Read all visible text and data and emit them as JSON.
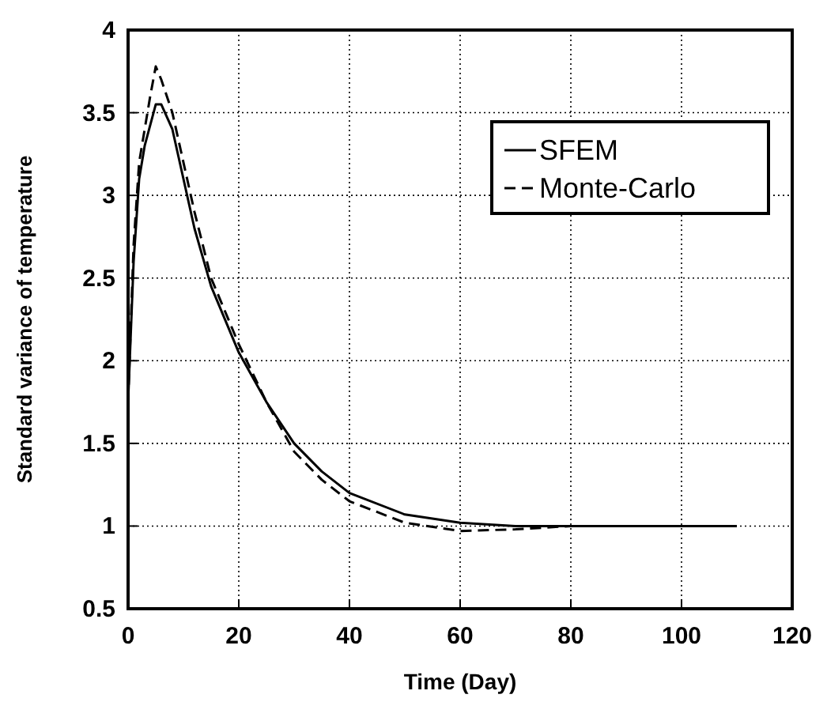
{
  "chart_data": {
    "type": "line",
    "xlabel": "Time (Day)",
    "ylabel": "Standard variance of temperature",
    "xlim": [
      0,
      120
    ],
    "xticks": [
      0,
      20,
      40,
      60,
      80,
      100,
      120
    ],
    "ylim": [
      0.5,
      4
    ],
    "yticks": [
      0.5,
      1,
      1.5,
      2,
      2.5,
      3,
      3.5,
      4
    ],
    "grid": true,
    "legend": "top right",
    "series": [
      {
        "name": "SFEM",
        "color": "#000000",
        "line_style": "solid",
        "x": [
          0,
          1,
          2,
          3,
          5,
          6,
          8,
          10,
          12,
          15,
          20,
          25,
          30,
          35,
          40,
          50,
          60,
          70,
          80,
          110
        ],
        "values": [
          1.75,
          2.6,
          3.1,
          3.3,
          3.55,
          3.55,
          3.4,
          3.1,
          2.8,
          2.45,
          2.05,
          1.75,
          1.5,
          1.33,
          1.2,
          1.07,
          1.02,
          1.0,
          1.0,
          1.0
        ]
      },
      {
        "name": "Monte-Carlo",
        "color": "#000000",
        "line_style": "dashed",
        "x": [
          0,
          1,
          2,
          4,
          5,
          6,
          8,
          10,
          12,
          15,
          20,
          25,
          30,
          35,
          40,
          50,
          60,
          70,
          80,
          110
        ],
        "values": [
          1.75,
          2.7,
          3.2,
          3.6,
          3.78,
          3.7,
          3.5,
          3.2,
          2.9,
          2.5,
          2.1,
          1.75,
          1.45,
          1.28,
          1.15,
          1.02,
          0.97,
          0.98,
          1.0,
          1.0
        ]
      }
    ]
  }
}
